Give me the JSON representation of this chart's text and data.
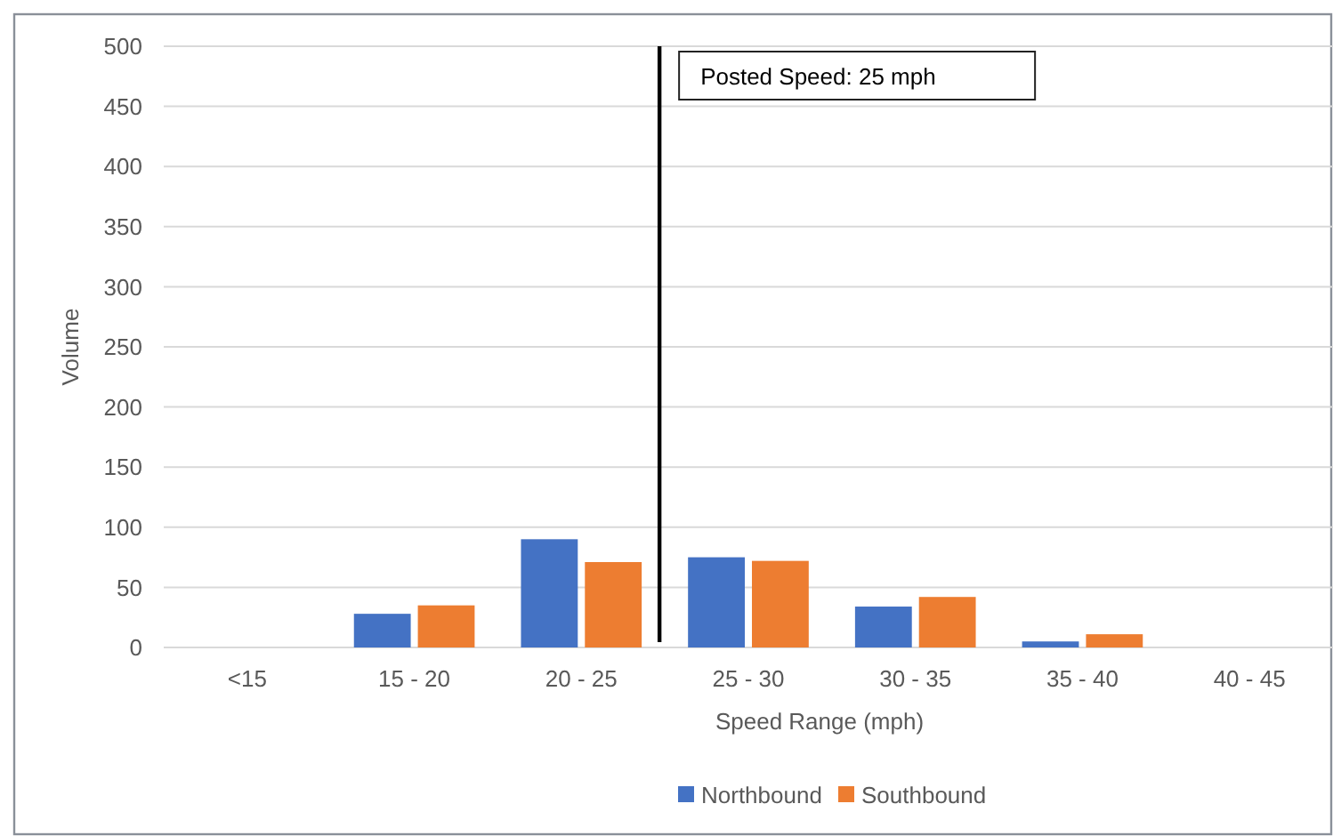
{
  "chart_data": {
    "type": "bar",
    "xlabel": "Speed Range (mph)",
    "ylabel": "Volume",
    "categories": [
      "<15",
      "15 - 20",
      "20 - 25",
      "25 - 30",
      "30 - 35",
      "35 - 40",
      "40 - 45"
    ],
    "series": [
      {
        "name": "Northbound",
        "color": "#4472c4",
        "values": [
          0,
          28,
          90,
          75,
          34,
          5,
          0
        ]
      },
      {
        "name": "Southbound",
        "color": "#ed7d31",
        "values": [
          0,
          35,
          71,
          72,
          42,
          11,
          0
        ]
      }
    ],
    "ylim": [
      0,
      500
    ],
    "yticks": [
      0,
      50,
      100,
      150,
      200,
      250,
      300,
      350,
      400,
      450,
      500
    ],
    "grid": "y",
    "legend": "bottom",
    "ref_lines": [
      {
        "axis": "x",
        "value": "25 - 30",
        "label": "Posted Speed: 25 mph",
        "color": "#000000"
      }
    ]
  }
}
